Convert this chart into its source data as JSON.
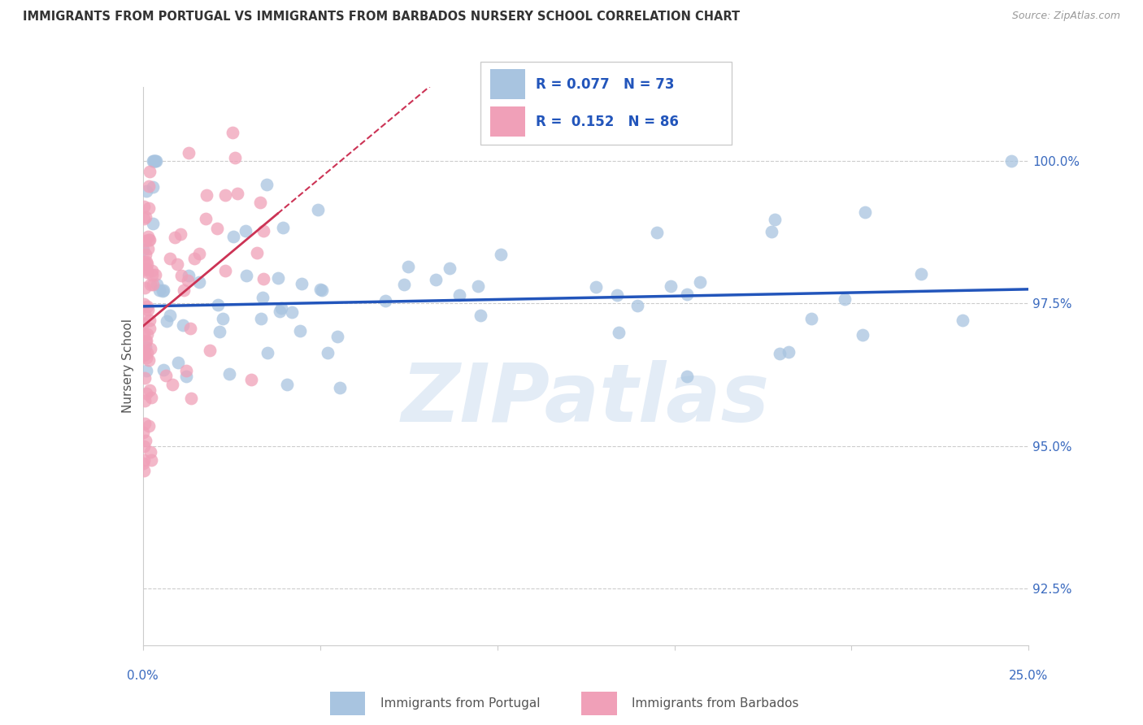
{
  "title": "IMMIGRANTS FROM PORTUGAL VS IMMIGRANTS FROM BARBADOS NURSERY SCHOOL CORRELATION CHART",
  "source": "Source: ZipAtlas.com",
  "ylabel": "Nursery School",
  "xlim": [
    0.0,
    25.0
  ],
  "ylim": [
    91.5,
    101.3
  ],
  "ytick_labels": [
    "92.5%",
    "95.0%",
    "97.5%",
    "100.0%"
  ],
  "ytick_values": [
    92.5,
    95.0,
    97.5,
    100.0
  ],
  "legend_r_portugal": "0.077",
  "legend_n_portugal": "73",
  "legend_r_barbados": "0.152",
  "legend_n_barbados": "86",
  "color_portugal": "#a8c4e0",
  "color_barbados": "#f0a0b8",
  "color_portugal_line": "#2255bb",
  "color_barbados_line": "#cc3355",
  "watermark": "ZIPatlas",
  "pt_slope": 0.012,
  "pt_intercept": 97.45,
  "bb_slope": 0.52,
  "bb_intercept": 97.1
}
